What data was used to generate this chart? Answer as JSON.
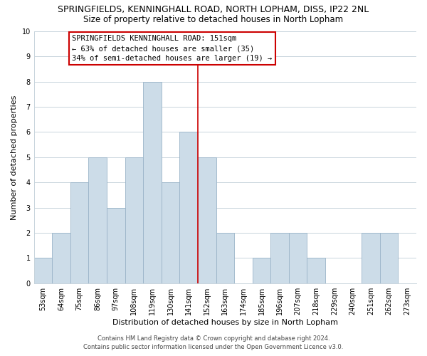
{
  "title": "SPRINGFIELDS, KENNINGHALL ROAD, NORTH LOPHAM, DISS, IP22 2NL",
  "subtitle": "Size of property relative to detached houses in North Lopham",
  "xlabel": "Distribution of detached houses by size in North Lopham",
  "ylabel": "Number of detached properties",
  "bar_labels": [
    "53sqm",
    "64sqm",
    "75sqm",
    "86sqm",
    "97sqm",
    "108sqm",
    "119sqm",
    "130sqm",
    "141sqm",
    "152sqm",
    "163sqm",
    "174sqm",
    "185sqm",
    "196sqm",
    "207sqm",
    "218sqm",
    "229sqm",
    "240sqm",
    "251sqm",
    "262sqm",
    "273sqm"
  ],
  "bar_values": [
    1,
    2,
    4,
    5,
    3,
    5,
    8,
    4,
    6,
    5,
    2,
    0,
    1,
    2,
    2,
    1,
    0,
    0,
    2,
    2,
    0
  ],
  "bar_color": "#ccdce8",
  "bar_edgecolor": "#9ab4c8",
  "vline_x_index": 9,
  "annotation_title": "SPRINGFIELDS KENNINGHALL ROAD: 151sqm",
  "annotation_line1": "← 63% of detached houses are smaller (35)",
  "annotation_line2": "34% of semi-detached houses are larger (19) →",
  "annotation_box_edgecolor": "#cc0000",
  "annotation_box_facecolor": "#ffffff",
  "vline_color": "#cc0000",
  "ylim": [
    0,
    10
  ],
  "yticks": [
    0,
    1,
    2,
    3,
    4,
    5,
    6,
    7,
    8,
    9,
    10
  ],
  "footer_line1": "Contains HM Land Registry data © Crown copyright and database right 2024.",
  "footer_line2": "Contains public sector information licensed under the Open Government Licence v3.0.",
  "background_color": "#ffffff",
  "grid_color": "#c8d4dc",
  "title_fontsize": 9,
  "subtitle_fontsize": 8.5,
  "axis_label_fontsize": 8,
  "tick_fontsize": 7,
  "annotation_fontsize": 7.5,
  "footer_fontsize": 6
}
